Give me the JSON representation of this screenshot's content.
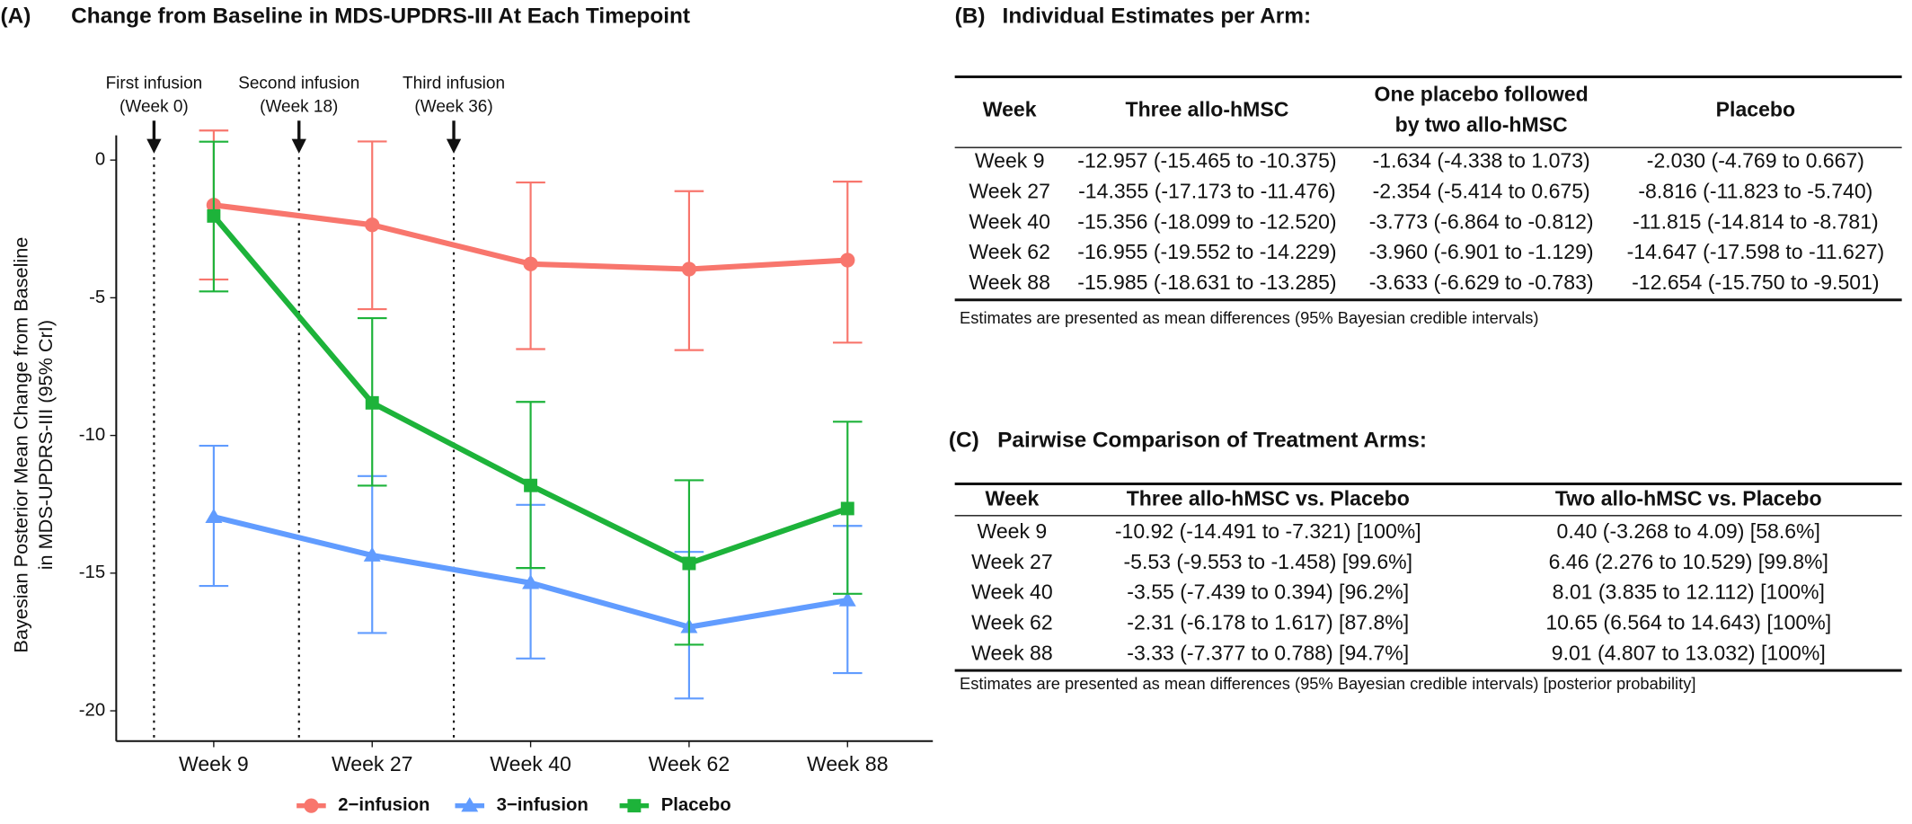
{
  "chart_data": {
    "type": "line",
    "panel_label": "(A)",
    "title": "Change from Baseline in MDS-UPDRS-III At Each Timepoint",
    "ylabel": [
      "Bayesian Posterior Mean Change from Baseline",
      "in MDS-UPDRS-III (95% CrI)"
    ],
    "categories": [
      "Week 9",
      "Week 27",
      "Week 40",
      "Week 62",
      "Week 88"
    ],
    "series": [
      {
        "name": "2−infusion",
        "color": "#F8766D",
        "marker": "circle",
        "values": [
          -1.634,
          -2.354,
          -3.773,
          -3.96,
          -3.633
        ],
        "lower": [
          -4.338,
          -5.414,
          -6.864,
          -6.901,
          -6.629
        ],
        "upper": [
          1.073,
          0.675,
          -0.812,
          -1.129,
          -0.783
        ]
      },
      {
        "name": "3−infusion",
        "color": "#619CFF",
        "marker": "triangle",
        "values": [
          -12.957,
          -14.355,
          -15.356,
          -16.955,
          -15.985
        ],
        "lower": [
          -15.465,
          -17.173,
          -18.099,
          -19.552,
          -18.631
        ],
        "upper": [
          -10.375,
          -11.476,
          -12.52,
          -14.229,
          -13.285
        ]
      },
      {
        "name": "Placebo",
        "color": "#1DB33A",
        "marker": "square",
        "values": [
          -2.03,
          -8.816,
          -11.815,
          -14.647,
          -12.654
        ],
        "lower": [
          -4.769,
          -11.823,
          -14.814,
          -17.598,
          -15.75
        ],
        "upper": [
          0.667,
          -5.74,
          -8.781,
          -11.627,
          -9.501
        ]
      }
    ],
    "annotations": [
      [
        "First infusion",
        "(Week 0)"
      ],
      [
        "Second infusion",
        "(Week 18)"
      ],
      [
        "Third infusion",
        "(Week 36)"
      ]
    ],
    "ylim": [
      -21.1,
      0.9
    ],
    "yticks": [
      0,
      -5,
      -10,
      -15,
      -20
    ],
    "grid": false,
    "legend": "bottom"
  },
  "table_b": {
    "panel_label": "(B)",
    "title": "Individual Estimates per Arm:",
    "header": [
      [
        "Week"
      ],
      [
        "Three allo-hMSC"
      ],
      [
        "One placebo followed",
        "by two allo-hMSC"
      ],
      [
        "Placebo"
      ]
    ],
    "rows": [
      [
        "Week 9",
        "-12.957 (-15.465 to -10.375)",
        "-1.634 (-4.338 to 1.073)",
        "-2.030 (-4.769 to 0.667)"
      ],
      [
        "Week 27",
        "-14.355 (-17.173 to -11.476)",
        "-2.354 (-5.414 to 0.675)",
        "-8.816 (-11.823 to -5.740)"
      ],
      [
        "Week 40",
        "-15.356 (-18.099 to -12.520)",
        "-3.773 (-6.864 to -0.812)",
        "-11.815 (-14.814 to -8.781)"
      ],
      [
        "Week 62",
        "-16.955 (-19.552 to -14.229)",
        "-3.960 (-6.901 to -1.129)",
        "-14.647 (-17.598 to -11.627)"
      ],
      [
        "Week 88",
        "-15.985 (-18.631 to -13.285)",
        "-3.633 (-6.629 to -0.783)",
        "-12.654 (-15.750 to -9.501)"
      ]
    ],
    "footnote": "Estimates are presented as mean differences (95% Bayesian credible intervals)"
  },
  "table_c": {
    "panel_label": "(C)",
    "title": "Pairwise Comparison of Treatment Arms:",
    "header": [
      [
        "Week"
      ],
      [
        "Three allo-hMSC vs. Placebo"
      ],
      [
        "Two allo-hMSC vs. Placebo"
      ]
    ],
    "rows": [
      [
        "Week 9",
        "-10.92 (-14.491 to -7.321) [100%]",
        "0.40 (-3.268 to 4.09) [58.6%]"
      ],
      [
        "Week 27",
        "-5.53 (-9.553 to -1.458) [99.6%]",
        "6.46 (2.276 to 10.529) [99.8%]"
      ],
      [
        "Week 40",
        "-3.55 (-7.439 to 0.394) [96.2%]",
        "8.01 (3.835 to 12.112) [100%]"
      ],
      [
        "Week 62",
        "-2.31 (-6.178 to 1.617) [87.8%]",
        "10.65 (6.564 to 14.643) [100%]"
      ],
      [
        "Week 88",
        "-3.33 (-7.377 to 0.788) [94.7%]",
        "9.01 (4.807 to 13.032) [100%]"
      ]
    ],
    "footnote": "Estimates are presented as mean differences (95% Bayesian credible intervals) [posterior probability]"
  }
}
